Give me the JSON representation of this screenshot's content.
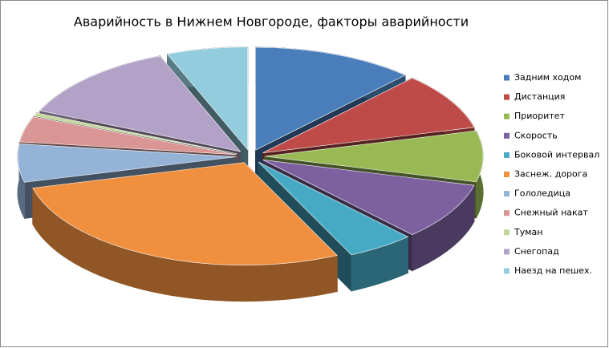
{
  "chart_data": {
    "type": "pie3d",
    "title": "Аварийность в Нижнем Новгороде, факторы аварийности",
    "categories": [
      "Задним ходом",
      "Дистанция",
      "Приоритет",
      "Скорость",
      "Боковой интервал",
      "Заснеж. дорога",
      "Гололедица",
      "Снежный накат",
      "Туман",
      "Снегопад",
      "Наезд на пешех."
    ],
    "values": [
      12,
      9,
      8,
      9,
      5,
      28,
      6,
      4,
      0.5,
      12.5,
      6
    ],
    "colors": [
      "#4a7ebb",
      "#be4b48",
      "#98b954",
      "#7d60a0",
      "#46aac5",
      "#f08f3e",
      "#95b3d7",
      "#d99694",
      "#c3d69b",
      "#b3a2c7",
      "#93cddd"
    ],
    "legend": "right"
  }
}
